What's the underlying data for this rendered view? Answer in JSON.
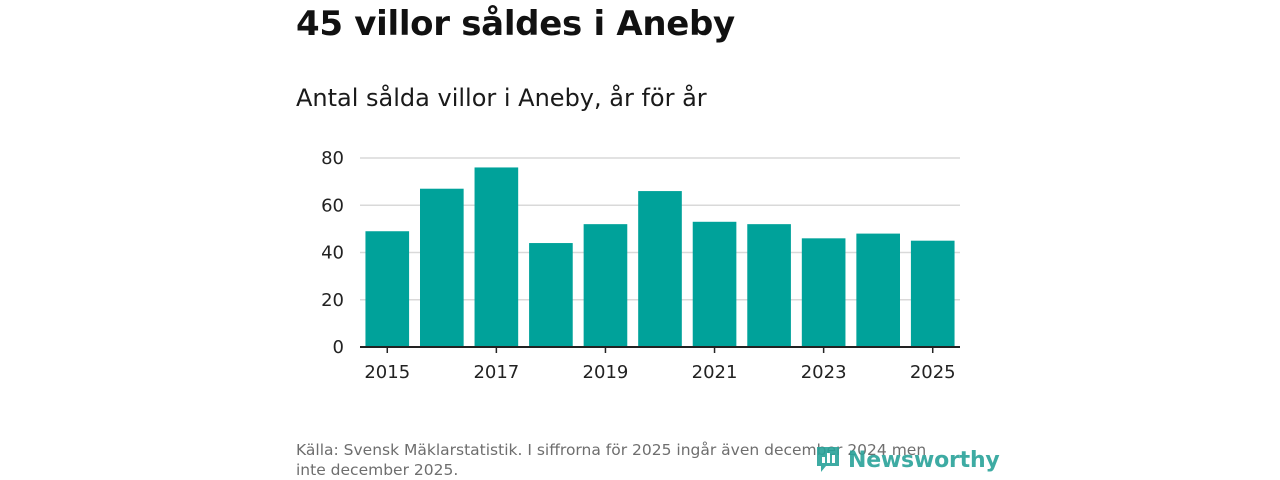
{
  "headline": "45 villor såldes i Aneby",
  "source": "Källa: Svensk Mäklarstatistik. I siffrorna för 2025 ingår även december 2024 men inte december 2025.",
  "brand": {
    "name": "Newsworthy",
    "icon": "newsworthy-logo-icon",
    "color": "#2aa39a"
  },
  "colors": {
    "bar": "#00a29a",
    "grid": "#d9d9d9",
    "axis": "#222222"
  },
  "chart_data": {
    "type": "bar",
    "title": "Antal sålda villor i Aneby, år för år",
    "xlabel": "",
    "ylabel": "",
    "categories": [
      "2015",
      "2016",
      "2017",
      "2018",
      "2019",
      "2020",
      "2021",
      "2022",
      "2023",
      "2024",
      "2025"
    ],
    "values": [
      49,
      67,
      76,
      44,
      52,
      66,
      53,
      52,
      46,
      48,
      45
    ],
    "ylim": [
      0,
      80
    ],
    "yticks": [
      0,
      20,
      40,
      60,
      80
    ],
    "xticks": [
      "2015",
      "2017",
      "2019",
      "2021",
      "2023",
      "2025"
    ],
    "grid": true,
    "legend": "none"
  }
}
